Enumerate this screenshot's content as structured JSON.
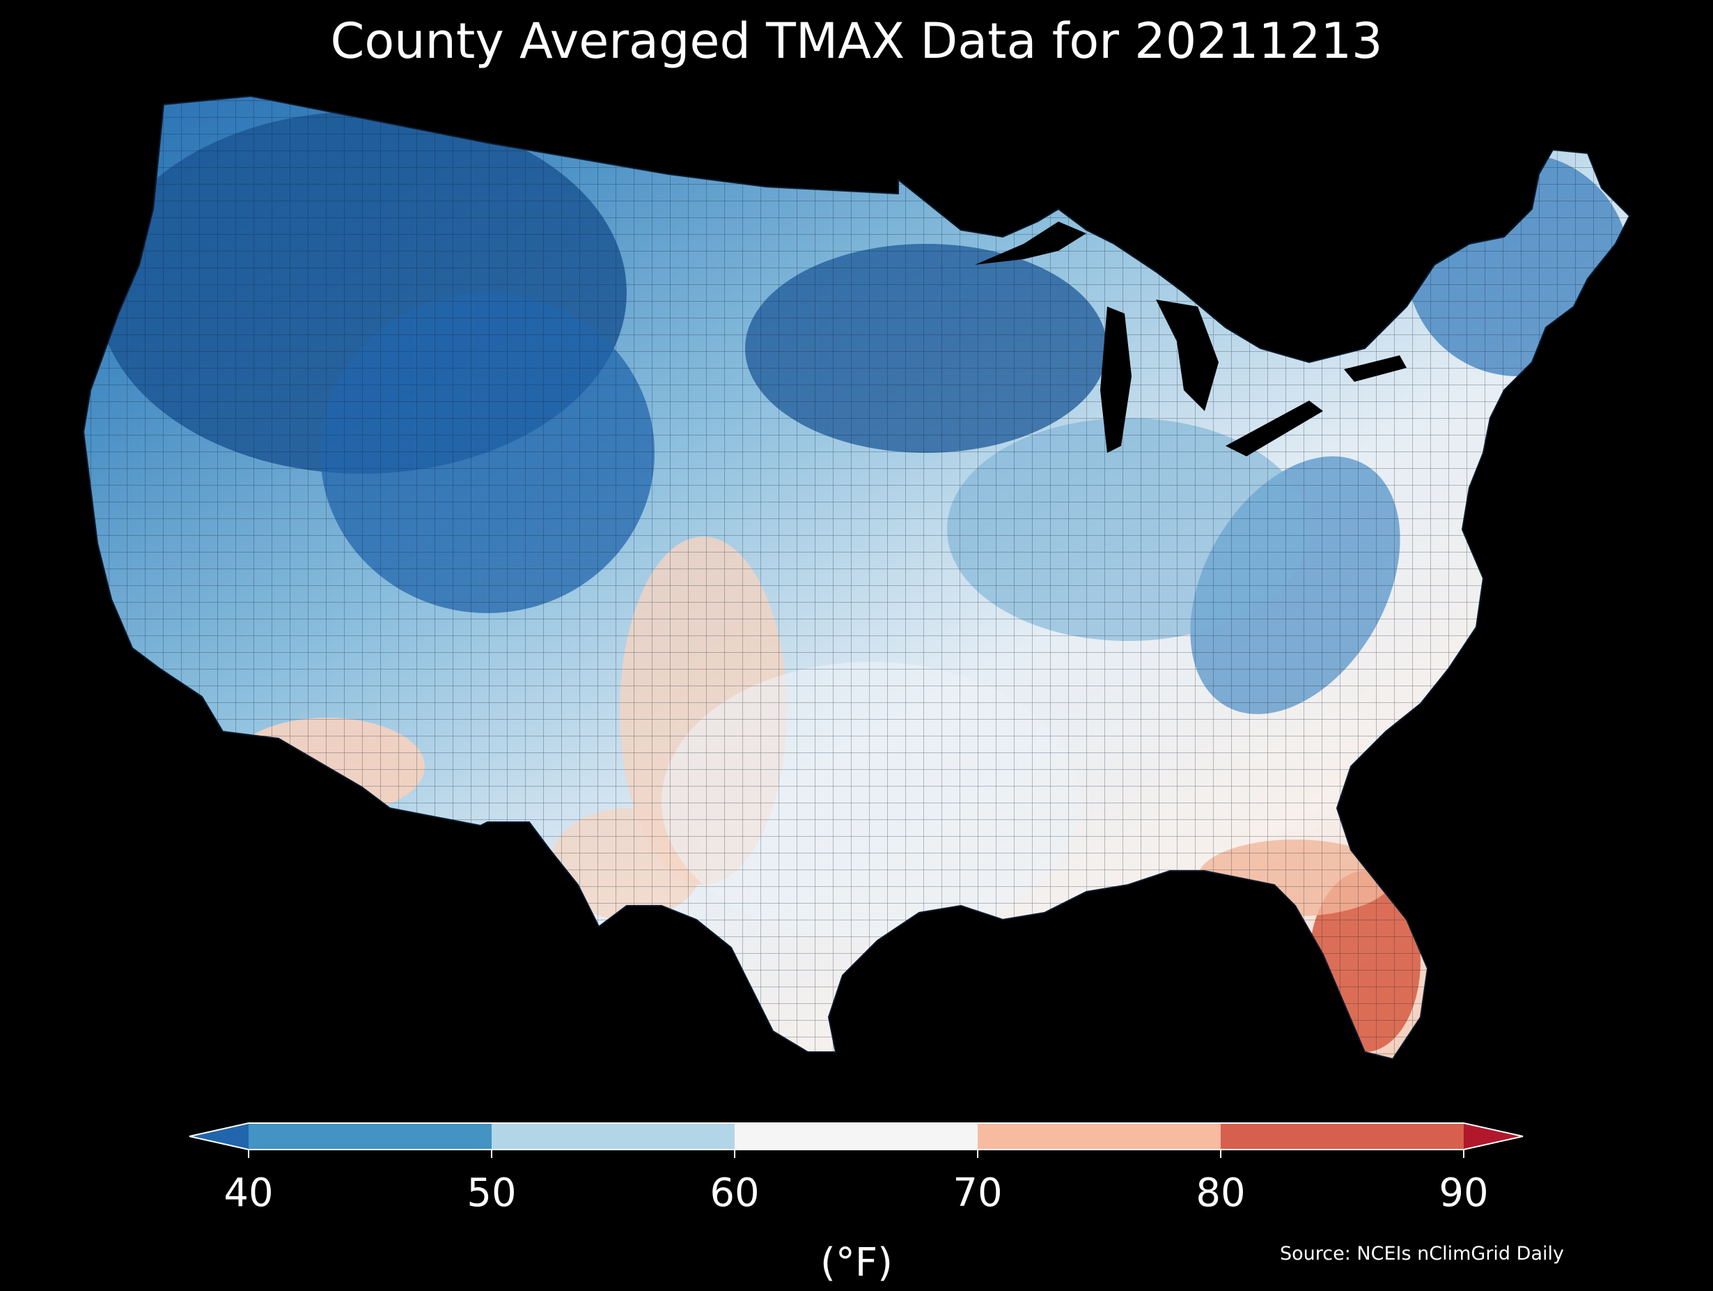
{
  "title": "County Averaged TMAX Data for 20211213",
  "colors": {
    "background": "#000000",
    "text": "#ffffff"
  },
  "legend": {
    "ticks": [
      "40",
      "50",
      "60",
      "70",
      "80",
      "90"
    ],
    "units": "(°F)",
    "bins": [
      {
        "range": "<40",
        "color": "#2166ac"
      },
      {
        "range": "40-50",
        "color": "#4393c3"
      },
      {
        "range": "50-60",
        "color": "#b2d6e8"
      },
      {
        "range": "60-70",
        "color": "#f5f5f5"
      },
      {
        "range": "70-80",
        "color": "#f7bba0"
      },
      {
        "range": "80-90",
        "color": "#d6604d"
      },
      {
        "range": ">90",
        "color": "#b2182b"
      }
    ]
  },
  "source": "Source: NCEIs nClimGrid Daily",
  "map": {
    "region": "Contiguous United States counties",
    "variable": "TMAX"
  }
}
